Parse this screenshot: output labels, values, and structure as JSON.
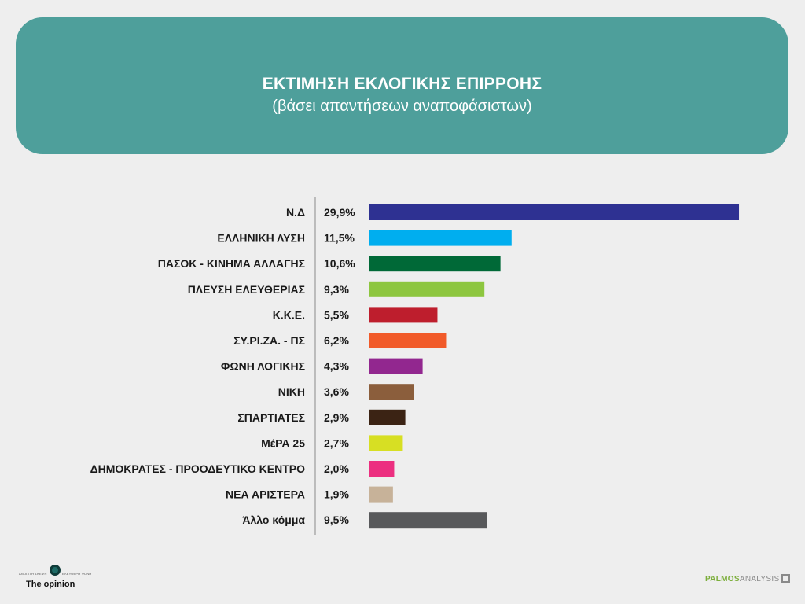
{
  "header": {
    "title": "ΕΚΤΙΜΗΣΗ ΕΚΛΟΓΙΚΗΣ ΕΠΙΡΡΟΗΣ",
    "subtitle": "(βάσει απαντήσεων αναποφάσιστων)"
  },
  "chart_data": {
    "type": "bar",
    "orientation": "horizontal",
    "title": "ΕΚΤΙΜΗΣΗ ΕΚΛΟΓΙΚΗΣ ΕΠΙΡΡΟΗΣ",
    "subtitle": "(βάσει απαντήσεων αναποφάσιστων)",
    "categories": [
      "Ν.Δ",
      "ΕΛΛΗΝΙΚΗ ΛΥΣΗ",
      "ΠΑΣΟΚ - ΚΙΝΗΜΑ ΑΛΛΑΓΗΣ",
      "ΠΛΕΥΣΗ ΕΛΕΥΘΕΡΙΑΣ",
      "Κ.Κ.Ε.",
      "ΣΥ.ΡΙ.ΖΑ. - ΠΣ",
      "ΦΩΝΗ ΛΟΓΙΚΗΣ",
      "ΝΙΚΗ",
      "ΣΠΑΡΤΙΑΤΕΣ",
      "ΜέΡΑ 25",
      "ΔΗΜΟΚΡΑΤΕΣ - ΠΡΟΟΔΕΥΤΙΚΟ ΚΕΝΤΡΟ",
      "ΝΕΑ ΑΡΙΣΤΕΡΑ",
      "Άλλο κόμμα"
    ],
    "values": [
      29.9,
      11.5,
      10.6,
      9.3,
      5.5,
      6.2,
      4.3,
      3.6,
      2.9,
      2.7,
      2.0,
      1.9,
      9.5
    ],
    "value_labels": [
      "29,9%",
      "11,5%",
      "10,6%",
      "9,3%",
      "5,5%",
      "6,2%",
      "4,3%",
      "3,6%",
      "2,9%",
      "2,7%",
      "2,0%",
      "1,9%",
      "9,5%"
    ],
    "colors": [
      "#2e3192",
      "#00aeef",
      "#006937",
      "#8dc63f",
      "#be1e2d",
      "#f15a29",
      "#92278f",
      "#8b5e3c",
      "#3b2314",
      "#d7df23",
      "#ec2f80",
      "#c7b299",
      "#58595b"
    ],
    "unit": "%",
    "grid": false,
    "legend": "none"
  },
  "footer": {
    "left_brand": "The opinion",
    "left_tag_left": "ΑΝΟΙΧΤΗ ΣΚΕΨΗ",
    "left_tag_right": "ΕΛΕΥΘΕΡΗ ΦΩΝΗ",
    "left_logo_icon": "opinion-logo-icon",
    "right_brand_a": "PALMOS",
    "right_brand_b": "ANALYSIS",
    "right_logo_icon": "palmos-box-icon"
  }
}
